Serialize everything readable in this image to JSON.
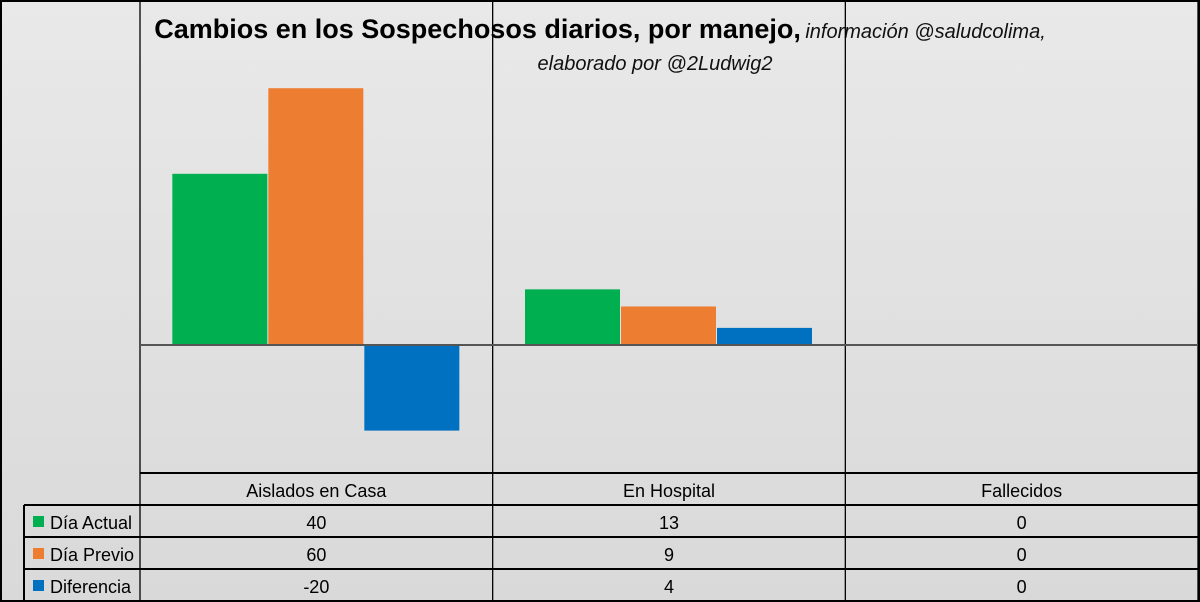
{
  "title": {
    "main": "Cambios en los Sospechosos diarios, por manejo,",
    "sub_line1": "información @saludcolima,",
    "sub_line2": "elaborado por @2Ludwig2"
  },
  "chart_data": {
    "type": "bar",
    "title": "Cambios en los Sospechosos diarios, por manejo",
    "categories": [
      "Aislados en Casa",
      "En Hospital",
      "Fallecidos"
    ],
    "series": [
      {
        "name": "Día Actual",
        "color": "#00b050",
        "values": [
          40,
          13,
          0
        ]
      },
      {
        "name": "Día Previo",
        "color": "#ed7d31",
        "values": [
          60,
          9,
          0
        ]
      },
      {
        "name": "Diferencia",
        "color": "#0070c0",
        "values": [
          -20,
          4,
          0
        ]
      }
    ],
    "ylim": [
      -30,
      70
    ],
    "xlabel": "",
    "ylabel": "",
    "legend": "data-table"
  }
}
